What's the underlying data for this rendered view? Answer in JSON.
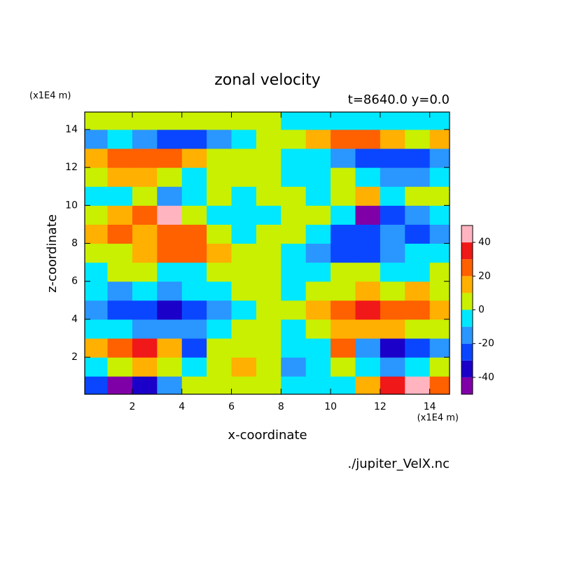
{
  "chart_data": {
    "type": "contourf",
    "title": "zonal velocity",
    "subtitle": "t=8640.0 y=0.0",
    "xlabel": "x-coordinate",
    "ylabel": "z-coordinate",
    "x_unit": "(x1E4 m)",
    "y_unit": "(x1E4 m)",
    "footer": "./jupiter_VelX.nc",
    "xlim": [
      0.08,
      14.8
    ],
    "ylim": [
      0.05,
      14.92
    ],
    "xticks": [
      2,
      4,
      6,
      8,
      10,
      12,
      14
    ],
    "yticks": [
      2,
      4,
      6,
      8,
      10,
      12,
      14
    ],
    "levels": [
      -50,
      -40,
      -30,
      -20,
      -10,
      0,
      10,
      20,
      30,
      40,
      50
    ],
    "colors": [
      "#8000a8",
      "#1a00c8",
      "#0a46ff",
      "#2a96ff",
      "#00e8ff",
      "#c8f000",
      "#ffb000",
      "#ff6000",
      "#f01818",
      "#ffb4c0"
    ],
    "colorbar_ticks": [
      -40,
      -20,
      0,
      20,
      40
    ],
    "x": [
      0.5,
      1.5,
      2.5,
      3.5,
      4.5,
      5.5,
      6.5,
      7.5,
      8.5,
      9.5,
      10.5,
      11.5,
      12.5,
      13.5,
      14.5
    ],
    "y": [
      0.5,
      1.5,
      2.5,
      3.5,
      4.5,
      5.5,
      6.5,
      7.5,
      8.5,
      9.5,
      10.5,
      11.5,
      12.5,
      13.5,
      14.5
    ],
    "z": [
      [
        -25,
        -45,
        -35,
        -15,
        5,
        5,
        5,
        5,
        -5,
        -5,
        -5,
        15,
        35,
        45,
        25
      ],
      [
        -5,
        5,
        15,
        5,
        -5,
        5,
        15,
        5,
        -15,
        -5,
        5,
        -5,
        -15,
        -5,
        5
      ],
      [
        15,
        25,
        35,
        15,
        -25,
        5,
        5,
        5,
        -5,
        -5,
        25,
        -15,
        -35,
        -25,
        -15
      ],
      [
        -5,
        -5,
        -15,
        -15,
        -15,
        -5,
        5,
        5,
        -5,
        5,
        15,
        15,
        15,
        5,
        5
      ],
      [
        -15,
        -25,
        -25,
        -35,
        -25,
        -15,
        -5,
        5,
        5,
        15,
        25,
        35,
        25,
        25,
        15
      ],
      [
        -5,
        -15,
        -5,
        -15,
        -5,
        -5,
        5,
        5,
        -5,
        5,
        5,
        15,
        5,
        15,
        5
      ],
      [
        -5,
        5,
        5,
        -5,
        -5,
        5,
        5,
        5,
        -5,
        -5,
        5,
        5,
        -5,
        -5,
        5
      ],
      [
        5,
        5,
        15,
        25,
        25,
        15,
        5,
        5,
        -5,
        -15,
        -25,
        -25,
        -15,
        -5,
        -5
      ],
      [
        15,
        25,
        15,
        25,
        25,
        5,
        -5,
        5,
        5,
        -5,
        -25,
        -25,
        -15,
        -25,
        -15
      ],
      [
        5,
        15,
        25,
        45,
        5,
        -5,
        -5,
        -5,
        5,
        5,
        -5,
        -45,
        -25,
        -15,
        -5
      ],
      [
        -5,
        -5,
        5,
        -15,
        -5,
        5,
        -5,
        5,
        5,
        -5,
        5,
        15,
        -5,
        5,
        5
      ],
      [
        5,
        15,
        15,
        5,
        -5,
        5,
        5,
        5,
        -5,
        -5,
        5,
        -5,
        -15,
        -15,
        -5
      ],
      [
        15,
        25,
        25,
        25,
        15,
        5,
        5,
        5,
        -5,
        -5,
        -15,
        -25,
        -25,
        -25,
        -15
      ],
      [
        -15,
        -5,
        -15,
        -25,
        -25,
        -15,
        -5,
        5,
        5,
        15,
        25,
        25,
        15,
        5,
        15
      ],
      [
        5,
        5,
        5,
        5,
        5,
        5,
        5,
        5,
        -5,
        -5,
        -5,
        -5,
        -5,
        -5,
        -5
      ]
    ]
  }
}
